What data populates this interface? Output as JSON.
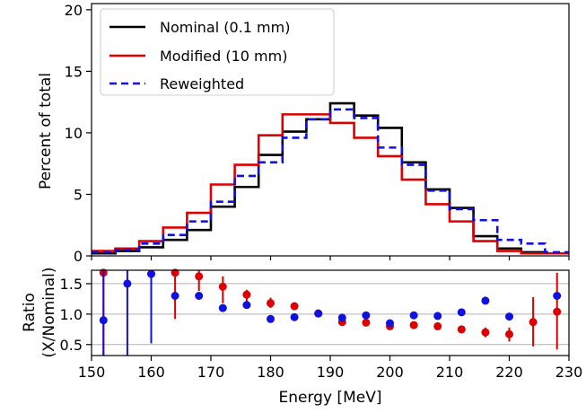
{
  "chart_data": [
    {
      "type": "line",
      "ylabel": "Percent of total",
      "ylim": [
        0,
        20.5
      ],
      "xlim": [
        150,
        230
      ],
      "yticks": [
        "0",
        "5",
        "10",
        "15",
        "20"
      ],
      "bin_edges": [
        150,
        154,
        158,
        162,
        166,
        170,
        174,
        178,
        182,
        186,
        190,
        194,
        198,
        202,
        206,
        210,
        214,
        218,
        222,
        226,
        230
      ],
      "legend": {
        "position": "top-left",
        "entries": [
          "Nominal (0.1 mm)",
          "Modified (10 mm)",
          "Reweighted"
        ]
      },
      "series": [
        {
          "name": "Nominal (0.1 mm)",
          "color": "#000000",
          "style": "solid",
          "values": [
            0.2,
            0.4,
            0.7,
            1.3,
            2.1,
            4.0,
            5.6,
            8.2,
            10.1,
            11.1,
            12.4,
            11.4,
            10.4,
            7.6,
            5.4,
            3.9,
            1.6,
            0.6,
            0.3,
            0.2
          ]
        },
        {
          "name": "Modified (10 mm)",
          "color": "#dd0000",
          "style": "solid",
          "values": [
            0.4,
            0.6,
            1.2,
            2.3,
            3.5,
            5.8,
            7.4,
            9.8,
            11.5,
            11.5,
            10.8,
            9.6,
            8.1,
            6.2,
            4.2,
            2.8,
            1.2,
            0.4,
            0.2,
            0.2
          ]
        },
        {
          "name": "Reweighted",
          "color": "#1010e0",
          "style": "dashed",
          "values": [
            0.3,
            0.5,
            1.0,
            1.7,
            2.8,
            4.4,
            6.5,
            7.6,
            9.6,
            11.1,
            11.9,
            11.2,
            8.8,
            7.4,
            5.3,
            3.8,
            2.9,
            1.3,
            1.0,
            0.3
          ]
        }
      ]
    },
    {
      "type": "scatter",
      "xlabel": "Energy [MeV]",
      "ylabel_lines": [
        "Ratio",
        "(X/Nominal)"
      ],
      "xlim": [
        150,
        230
      ],
      "ylim": [
        0.32,
        1.72
      ],
      "xticks": [
        "150",
        "160",
        "170",
        "180",
        "190",
        "200",
        "210",
        "220",
        "230"
      ],
      "yticks": [
        "0.5",
        "1.0",
        "1.5"
      ],
      "ygrid": [
        0.5,
        1.0,
        1.5
      ],
      "series": [
        {
          "name": "Modified (10 mm)",
          "color": "#dd0000",
          "x": [
            152,
            164,
            168,
            172,
            176,
            180,
            184,
            188,
            192,
            196,
            200,
            204,
            208,
            212,
            216,
            220,
            224,
            228
          ],
          "y": [
            1.68,
            1.68,
            1.62,
            1.45,
            1.32,
            1.18,
            1.13,
            1.01,
            0.87,
            0.86,
            0.8,
            0.82,
            0.8,
            0.75,
            0.7,
            0.67,
            0.87,
            1.04
          ],
          "err_low": [
            0.32,
            0.92,
            1.38,
            1.18,
            1.2,
            1.1,
            null,
            null,
            null,
            null,
            null,
            null,
            null,
            null,
            0.62,
            0.55,
            0.47,
            0.42
          ],
          "err_high": [
            1.72,
            1.72,
            1.72,
            1.62,
            1.4,
            1.27,
            null,
            null,
            null,
            null,
            null,
            null,
            null,
            null,
            0.78,
            0.78,
            1.28,
            1.68
          ]
        },
        {
          "name": "Reweighted",
          "color": "#1010e0",
          "x": [
            152,
            156,
            160,
            164,
            168,
            172,
            176,
            180,
            184,
            188,
            192,
            196,
            200,
            204,
            208,
            212,
            216,
            220,
            228
          ],
          "y": [
            0.9,
            1.5,
            1.66,
            1.3,
            1.3,
            1.1,
            1.15,
            0.92,
            0.95,
            1.01,
            0.94,
            0.98,
            0.85,
            0.98,
            0.97,
            1.03,
            1.22,
            0.96,
            1.3
          ],
          "err_low": [
            0.32,
            0.32,
            0.52,
            null,
            null,
            null,
            null,
            null,
            null,
            null,
            null,
            null,
            null,
            null,
            null,
            null,
            null,
            null,
            null
          ],
          "err_high": [
            1.72,
            1.72,
            1.72,
            null,
            null,
            null,
            null,
            null,
            null,
            null,
            null,
            null,
            null,
            null,
            null,
            null,
            null,
            null,
            null
          ]
        }
      ]
    }
  ]
}
